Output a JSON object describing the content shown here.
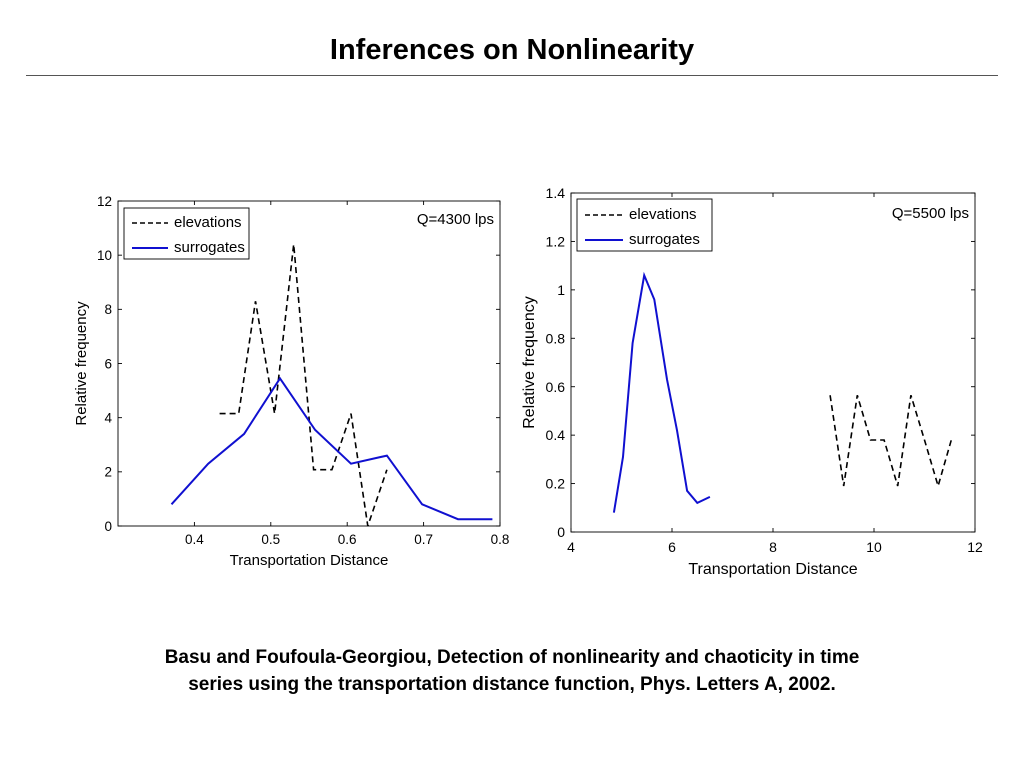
{
  "slide": {
    "title": "Inferences on Nonlinearity",
    "citation_line1": "Basu and Foufoula-Georgiou, Detection of nonlinearity and chaoticity in time",
    "citation_line2": "series using the transportation distance function, Phys. Letters A, 2002."
  },
  "colors": {
    "elevations": "#000000",
    "surrogates": "#1010d0",
    "axes": "#000000"
  },
  "chart_data": [
    {
      "type": "line",
      "annotation": "Q=4300 lps",
      "xlabel": "Transportation Distance",
      "ylabel": "Relative frequency",
      "xlim": [
        0.3,
        0.8
      ],
      "ylim": [
        0,
        12
      ],
      "xticks": [
        0.4,
        0.5,
        0.6,
        0.7,
        0.8
      ],
      "xtick_labels": [
        "0.4",
        "0.5",
        "0.6",
        "0.7",
        "0.8"
      ],
      "yticks": [
        0,
        2,
        4,
        6,
        8,
        10,
        12
      ],
      "ytick_labels": [
        "0",
        "2",
        "4",
        "6",
        "8",
        "10",
        "12"
      ],
      "legend_position": "top-left",
      "series": [
        {
          "name": "elevations",
          "style": "dashed",
          "x": [
            0.433,
            0.458,
            0.48,
            0.505,
            0.53,
            0.556,
            0.58,
            0.605,
            0.627,
            0.652
          ],
          "y": [
            4.15,
            4.15,
            8.3,
            4.15,
            10.4,
            2.08,
            2.08,
            4.15,
            0,
            2.08
          ]
        },
        {
          "name": "surrogates",
          "style": "solid",
          "x": [
            0.37,
            0.418,
            0.465,
            0.512,
            0.558,
            0.605,
            0.652,
            0.698,
            0.745,
            0.79
          ],
          "y": [
            0.8,
            2.3,
            3.4,
            5.45,
            3.55,
            2.3,
            2.6,
            0.8,
            0.25,
            0.25
          ]
        }
      ]
    },
    {
      "type": "line",
      "annotation": "Q=5500 lps",
      "xlabel": "Transportation Distance",
      "ylabel": "Relative frequency",
      "xlim": [
        4,
        12
      ],
      "ylim": [
        0,
        1.4
      ],
      "xticks": [
        4,
        6,
        8,
        10,
        12
      ],
      "xtick_labels": [
        "4",
        "6",
        "8",
        "10",
        "12"
      ],
      "yticks": [
        0,
        0.2,
        0.4,
        0.6,
        0.8,
        1,
        1.2,
        1.4
      ],
      "ytick_labels": [
        "0",
        "0.2",
        "0.4",
        "0.6",
        "0.8",
        "1",
        "1.2",
        "1.4"
      ],
      "legend_position": "top-left",
      "series": [
        {
          "name": "elevations",
          "style": "dashed",
          "x": [
            9.13,
            9.4,
            9.67,
            9.93,
            10.2,
            10.47,
            10.73,
            11.0,
            11.27,
            11.53
          ],
          "y": [
            0.565,
            0.19,
            0.565,
            0.38,
            0.38,
            0.19,
            0.565,
            0.38,
            0.19,
            0.38
          ]
        },
        {
          "name": "surrogates",
          "style": "solid",
          "x": [
            4.85,
            5.03,
            5.22,
            5.45,
            5.65,
            5.9,
            6.1,
            6.3,
            6.5,
            6.75
          ],
          "y": [
            0.08,
            0.31,
            0.78,
            1.06,
            0.96,
            0.63,
            0.42,
            0.17,
            0.12,
            0.145
          ]
        }
      ]
    }
  ]
}
